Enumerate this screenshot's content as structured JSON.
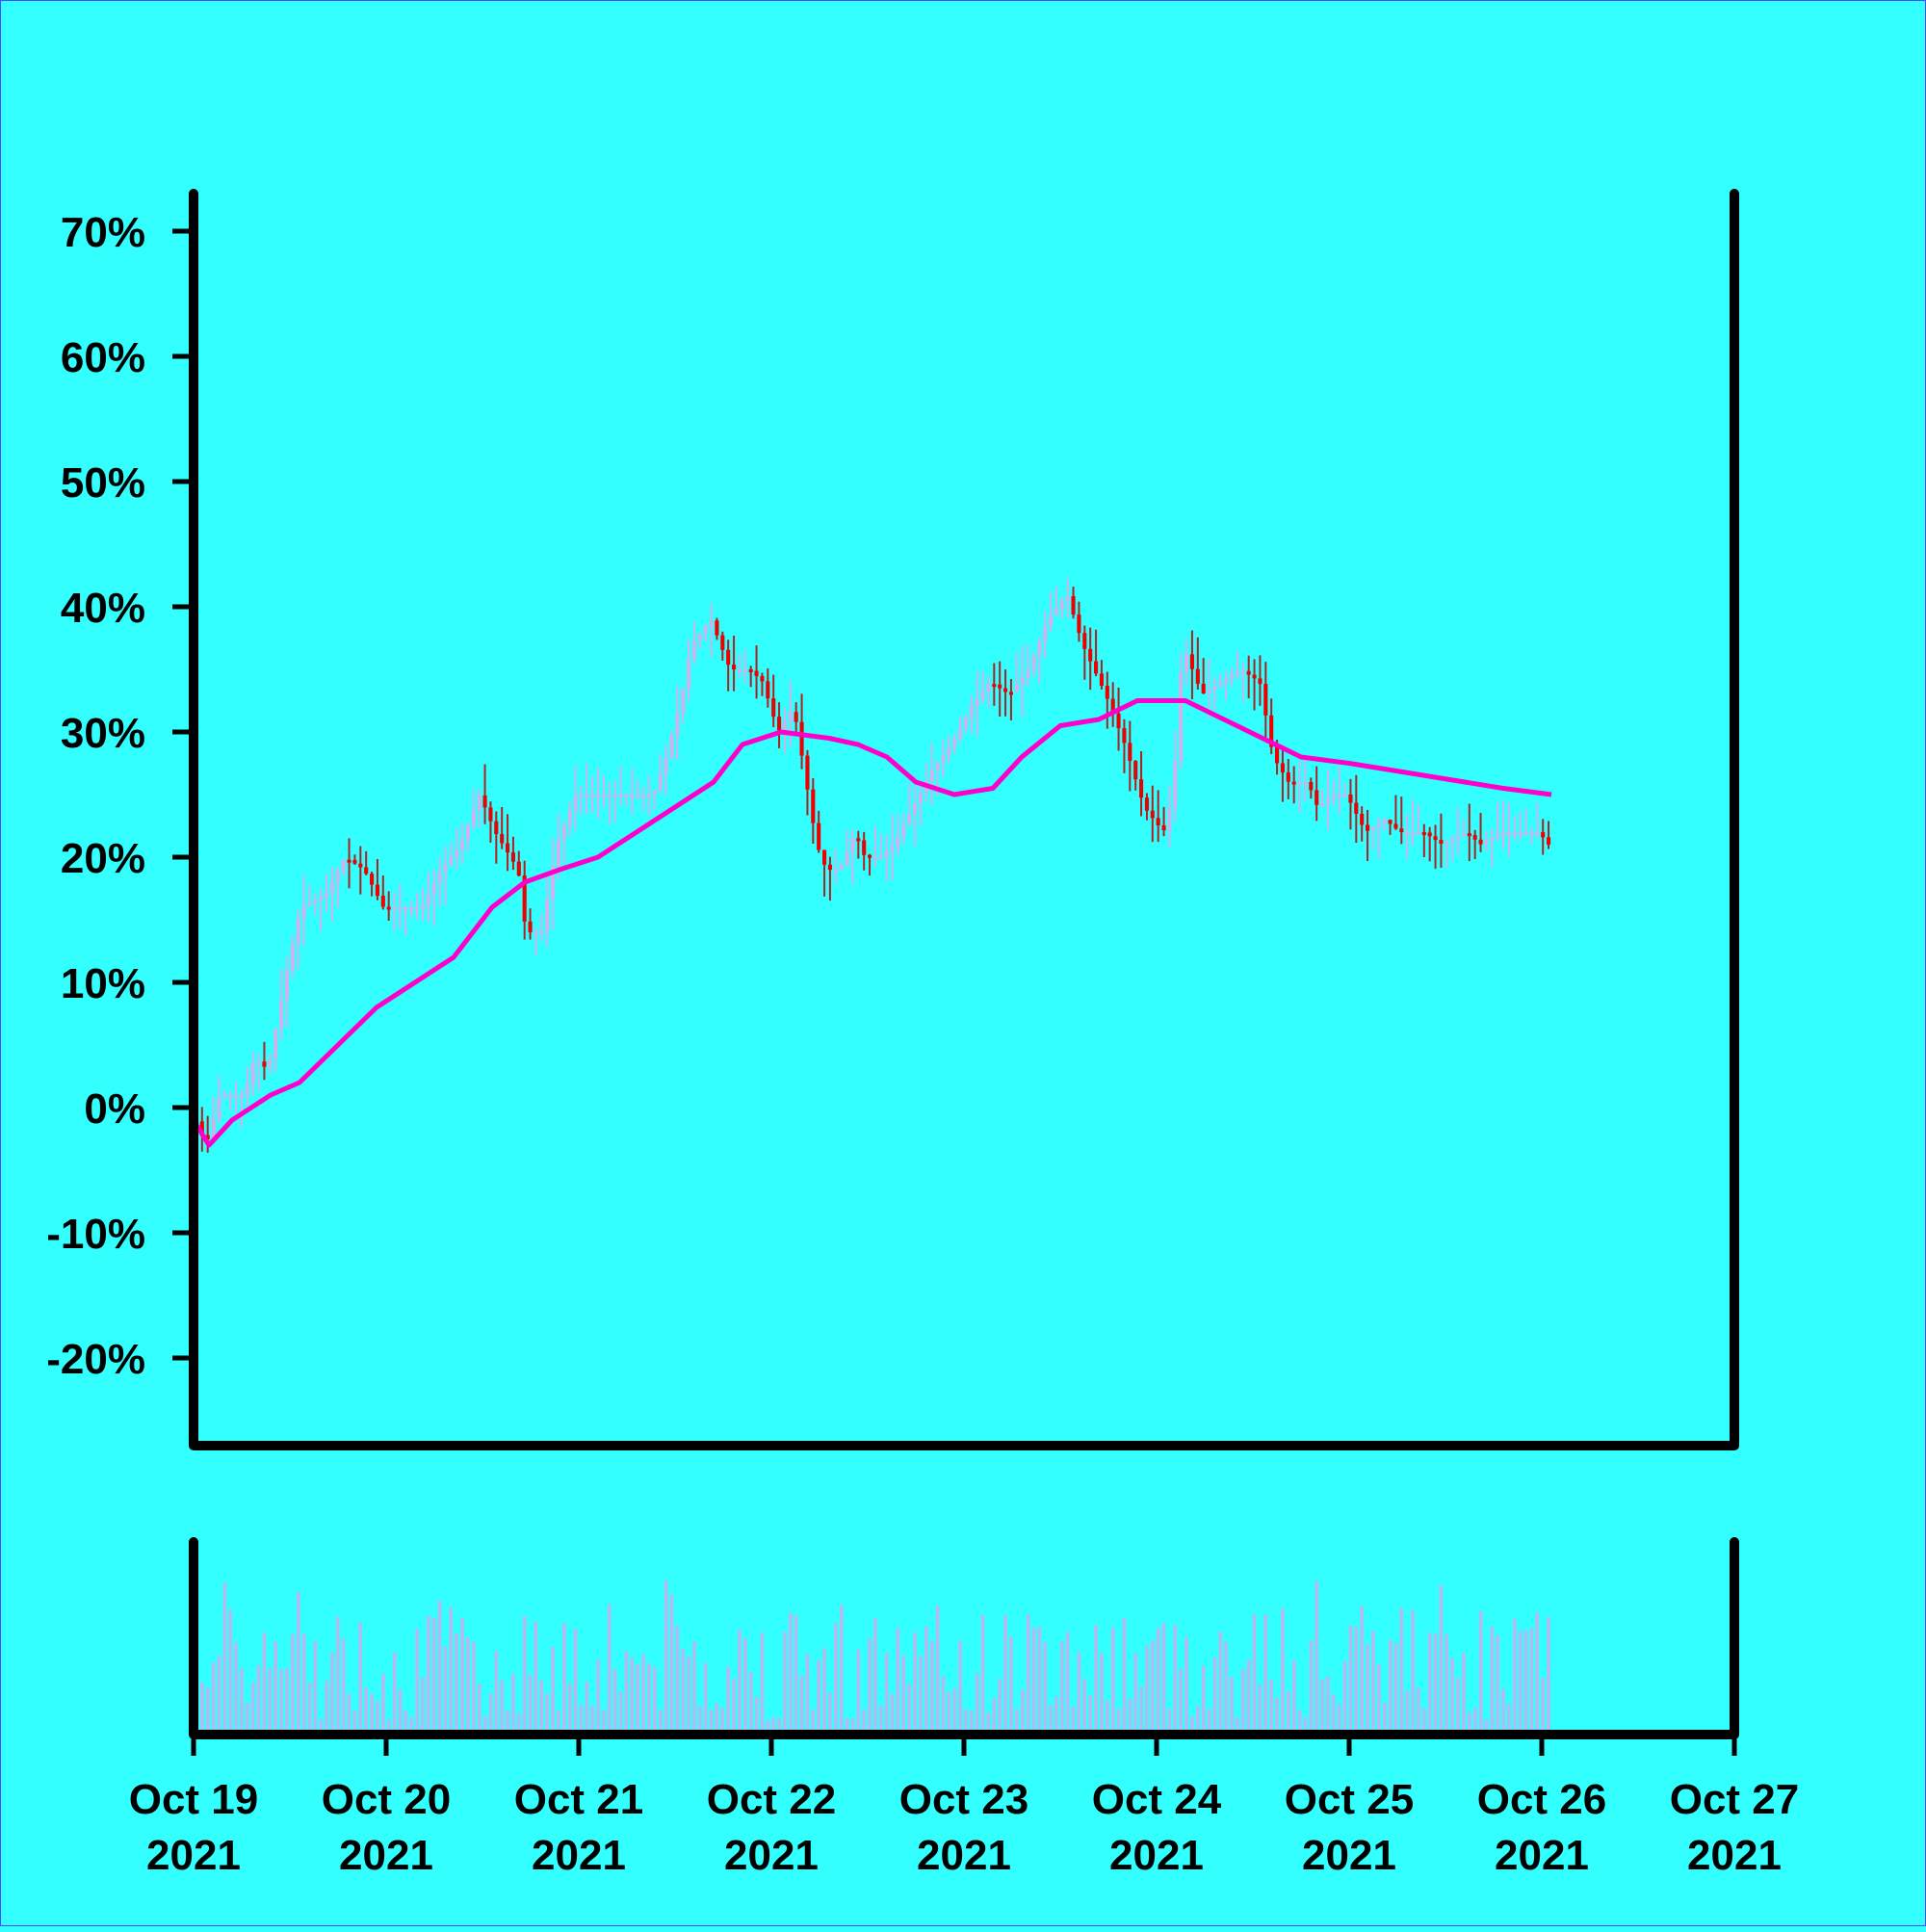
{
  "chart_data": {
    "type": "candlestick",
    "title": "",
    "xlabel": "",
    "ylabel": "",
    "ylim": [
      -27,
      73
    ],
    "y_ticks": [
      {
        "value": 70,
        "label": "70%"
      },
      {
        "value": 60,
        "label": "60%"
      },
      {
        "value": 50,
        "label": "50%"
      },
      {
        "value": 40,
        "label": "40%"
      },
      {
        "value": 30,
        "label": "30%"
      },
      {
        "value": 20,
        "label": "20%"
      },
      {
        "value": 10,
        "label": "10%"
      },
      {
        "value": 0,
        "label": "0%"
      },
      {
        "value": -10,
        "label": "-10%"
      },
      {
        "value": -20,
        "label": "-20%"
      }
    ],
    "x_ticks": [
      {
        "day": 0,
        "line1": "Oct 19",
        "line2": "2021"
      },
      {
        "day": 1,
        "line1": "Oct 20",
        "line2": "2021"
      },
      {
        "day": 2,
        "line1": "Oct 21",
        "line2": "2021"
      },
      {
        "day": 3,
        "line1": "Oct 22",
        "line2": "2021"
      },
      {
        "day": 4,
        "line1": "Oct 23",
        "line2": "2021"
      },
      {
        "day": 5,
        "line1": "Oct 24",
        "line2": "2021"
      },
      {
        "day": 6,
        "line1": "Oct 25",
        "line2": "2021"
      },
      {
        "day": 7,
        "line1": "Oct 26",
        "line2": "2021"
      },
      {
        "day": 8,
        "line1": "Oct 27",
        "line2": "2021"
      }
    ],
    "price_path": [
      [
        0.0,
        0
      ],
      [
        0.08,
        -3
      ],
      [
        0.15,
        1
      ],
      [
        0.28,
        1
      ],
      [
        0.33,
        4
      ],
      [
        0.4,
        3
      ],
      [
        0.5,
        11
      ],
      [
        0.57,
        16
      ],
      [
        0.7,
        17
      ],
      [
        0.8,
        20
      ],
      [
        0.9,
        19
      ],
      [
        1.0,
        16
      ],
      [
        1.1,
        16
      ],
      [
        1.2,
        16
      ],
      [
        1.3,
        19
      ],
      [
        1.4,
        21
      ],
      [
        1.5,
        25
      ],
      [
        1.58,
        22
      ],
      [
        1.7,
        19
      ],
      [
        1.74,
        14
      ],
      [
        1.82,
        14
      ],
      [
        1.9,
        21
      ],
      [
        2.0,
        25
      ],
      [
        2.1,
        25
      ],
      [
        2.2,
        25
      ],
      [
        2.25,
        25
      ],
      [
        2.3,
        25
      ],
      [
        2.4,
        25
      ],
      [
        2.47,
        28
      ],
      [
        2.55,
        33
      ],
      [
        2.6,
        37
      ],
      [
        2.7,
        39
      ],
      [
        2.8,
        35
      ],
      [
        2.9,
        35
      ],
      [
        2.97,
        34
      ],
      [
        3.05,
        30
      ],
      [
        3.13,
        32
      ],
      [
        3.25,
        21
      ],
      [
        3.3,
        19
      ],
      [
        3.37,
        19
      ],
      [
        3.45,
        22
      ],
      [
        3.5,
        20
      ],
      [
        3.58,
        20
      ],
      [
        3.65,
        21
      ],
      [
        3.75,
        24
      ],
      [
        3.85,
        27
      ],
      [
        3.95,
        29
      ],
      [
        4.05,
        32
      ],
      [
        4.15,
        34
      ],
      [
        4.25,
        33
      ],
      [
        4.35,
        35
      ],
      [
        4.45,
        39
      ],
      [
        4.55,
        41
      ],
      [
        4.63,
        37
      ],
      [
        4.75,
        33
      ],
      [
        4.85,
        29
      ],
      [
        4.95,
        24
      ],
      [
        5.05,
        22
      ],
      [
        5.1,
        25
      ],
      [
        5.15,
        37
      ],
      [
        5.25,
        33
      ],
      [
        5.35,
        34
      ],
      [
        5.45,
        35
      ],
      [
        5.55,
        34
      ],
      [
        5.62,
        28
      ],
      [
        5.7,
        26
      ],
      [
        5.8,
        26
      ],
      [
        5.85,
        24
      ],
      [
        5.93,
        25
      ],
      [
        6.0,
        25
      ],
      [
        6.1,
        22
      ],
      [
        6.2,
        23
      ],
      [
        6.28,
        22
      ],
      [
        6.4,
        22
      ],
      [
        6.5,
        21
      ],
      [
        6.62,
        22
      ],
      [
        6.7,
        21
      ],
      [
        6.8,
        22
      ],
      [
        6.92,
        22
      ],
      [
        7.0,
        22
      ],
      [
        7.05,
        21
      ]
    ],
    "ma_path": [
      [
        0.0,
        -1
      ],
      [
        0.08,
        -3
      ],
      [
        0.2,
        -1
      ],
      [
        0.4,
        1
      ],
      [
        0.55,
        2
      ],
      [
        0.75,
        5
      ],
      [
        0.95,
        8
      ],
      [
        1.15,
        10
      ],
      [
        1.35,
        12
      ],
      [
        1.55,
        16
      ],
      [
        1.72,
        18
      ],
      [
        1.9,
        19
      ],
      [
        2.1,
        20
      ],
      [
        2.3,
        22
      ],
      [
        2.5,
        24
      ],
      [
        2.7,
        26
      ],
      [
        2.85,
        29
      ],
      [
        3.05,
        30
      ],
      [
        3.3,
        29.5
      ],
      [
        3.45,
        29
      ],
      [
        3.6,
        28
      ],
      [
        3.75,
        26
      ],
      [
        3.95,
        25
      ],
      [
        4.15,
        25.5
      ],
      [
        4.3,
        28
      ],
      [
        4.5,
        30.5
      ],
      [
        4.7,
        31
      ],
      [
        4.9,
        32.5
      ],
      [
        5.15,
        32.5
      ],
      [
        5.35,
        31
      ],
      [
        5.55,
        29.5
      ],
      [
        5.75,
        28
      ],
      [
        6.0,
        27.5
      ],
      [
        6.2,
        27
      ],
      [
        6.4,
        26.5
      ],
      [
        6.6,
        26
      ],
      [
        6.8,
        25.5
      ],
      [
        7.05,
        25
      ]
    ],
    "colors": {
      "background": "#33ffff",
      "up": "#ccb3ee",
      "down": "#ee0000",
      "wick_down": "#aa2222",
      "ma": "#ff00cc",
      "volume": "#b8b8f0",
      "axis": "#000000"
    }
  }
}
